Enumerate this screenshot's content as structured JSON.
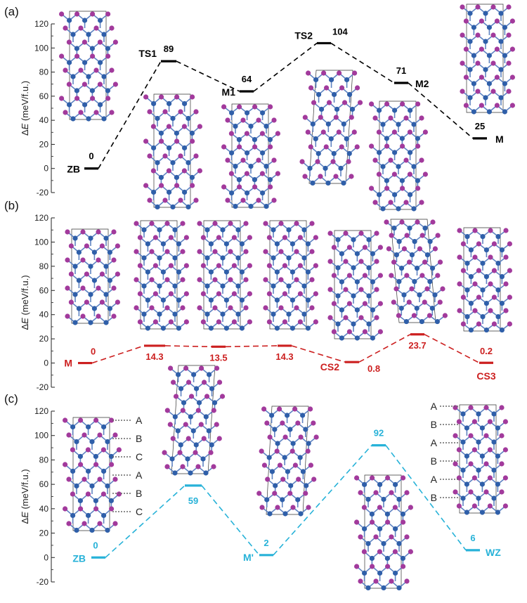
{
  "colors": {
    "a": "#000000",
    "b": "#cc1f1f",
    "c": "#27b2d8",
    "atom_purple": "#a23a9c",
    "atom_blue": "#2f5fa9",
    "bond": "#5f83c2"
  },
  "panels": [
    {
      "label": "(a)",
      "ylabel_prefix": "Δ",
      "ylabel_italic": "E",
      "ylabel_rest": " (meV/f.u.)",
      "yticks": [
        "120",
        "100",
        "80",
        "60",
        "40",
        "20",
        "0",
        "-20"
      ],
      "states": [
        {
          "name": "ZB",
          "value": "0"
        },
        {
          "name": "TS1",
          "value": "89"
        },
        {
          "name": "M1",
          "value": "64"
        },
        {
          "name": "TS2",
          "value": "104"
        },
        {
          "name": "M2",
          "value": "71"
        },
        {
          "name": "M",
          "value": "25"
        }
      ]
    },
    {
      "label": "(b)",
      "ylabel_prefix": "Δ",
      "ylabel_italic": "E",
      "ylabel_rest": " (meV/f.u.)",
      "yticks": [
        "120",
        "100",
        "80",
        "60",
        "40",
        "20",
        "0",
        "-20"
      ],
      "states": [
        {
          "name": "M",
          "value": "0"
        },
        {
          "name": "",
          "value": "14.3"
        },
        {
          "name": "",
          "value": "13.5"
        },
        {
          "name": "",
          "value": "14.3"
        },
        {
          "name": "CS2",
          "value": "0.8"
        },
        {
          "name": "",
          "value": "23.7"
        },
        {
          "name": "CS3",
          "value": "0.2"
        }
      ]
    },
    {
      "label": "(c)",
      "ylabel_prefix": "Δ",
      "ylabel_italic": "E",
      "ylabel_rest": " (meV/f.u.)",
      "yticks": [
        "120",
        "100",
        "80",
        "60",
        "40",
        "20",
        "0",
        "-20"
      ],
      "states": [
        {
          "name": "ZB",
          "value": "0"
        },
        {
          "name": "",
          "value": "59"
        },
        {
          "name": "M'",
          "value": "2"
        },
        {
          "name": "",
          "value": "92"
        },
        {
          "name": "WZ",
          "value": "6"
        }
      ],
      "stacking_zb": [
        "A",
        "B",
        "C",
        "A",
        "B",
        "C"
      ],
      "stacking_wz": [
        "A",
        "B",
        "A",
        "B",
        "A",
        "B"
      ]
    }
  ],
  "chart_data": [
    {
      "type": "line",
      "panel": "(a)",
      "ylabel": "ΔE (meV/f.u.)",
      "ylim": [
        -20,
        120
      ],
      "categories": [
        "ZB",
        "TS1",
        "M1",
        "TS2",
        "M2",
        "M"
      ],
      "values": [
        0,
        89,
        64,
        104,
        71,
        25
      ]
    },
    {
      "type": "line",
      "panel": "(b)",
      "ylabel": "ΔE (meV/f.u.)",
      "ylim": [
        -20,
        120
      ],
      "categories": [
        "M",
        "",
        "",
        "",
        "CS2",
        "",
        "CS3"
      ],
      "values": [
        0,
        14.3,
        13.5,
        14.3,
        0.8,
        23.7,
        0.2
      ]
    },
    {
      "type": "line",
      "panel": "(c)",
      "ylabel": "ΔE (meV/f.u.)",
      "ylim": [
        -20,
        120
      ],
      "categories": [
        "ZB",
        "",
        "M'",
        "",
        "WZ"
      ],
      "values": [
        0,
        59,
        2,
        92,
        6
      ]
    }
  ]
}
